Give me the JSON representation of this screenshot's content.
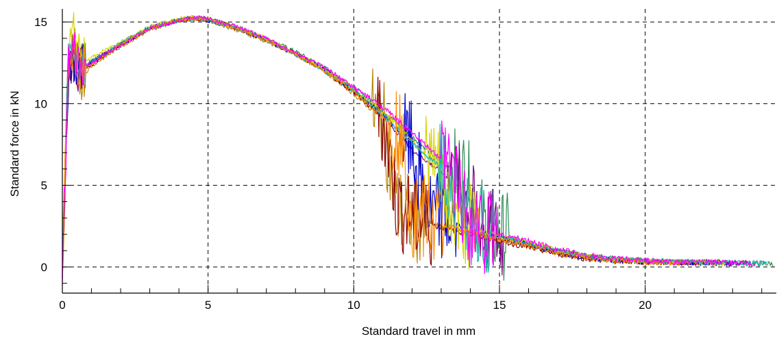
{
  "chart_data": {
    "type": "line",
    "xlabel": "Standard travel in mm",
    "ylabel": "Standard force in kN",
    "xlim": [
      0,
      24.5
    ],
    "ylim": [
      -1.6,
      15.8
    ],
    "xticks": [
      0,
      5,
      10,
      15,
      20
    ],
    "xtick_labels": [
      "0",
      "5",
      "10",
      "15",
      "20"
    ],
    "yticks": [
      0,
      5,
      10,
      15
    ],
    "ytick_labels": [
      "0",
      "5",
      "10",
      "15"
    ],
    "grid": true,
    "series": [
      {
        "color": "#2e8b57",
        "fracture_x": 13.8,
        "tail_end_x": 24.4,
        "x": [
          0,
          0.2,
          0.4,
          0.6,
          1,
          2,
          3,
          4,
          4.6,
          5,
          6,
          7,
          8,
          9,
          10,
          11,
          12,
          13,
          13.8,
          14.5,
          15,
          16,
          17,
          18,
          19,
          20,
          21,
          22,
          23,
          24.4
        ],
        "y": [
          0,
          12.5,
          13,
          12.2,
          12.5,
          13.7,
          14.7,
          15.2,
          15.3,
          15.2,
          14.7,
          14.0,
          13.2,
          12.2,
          11.0,
          9.6,
          8.0,
          6.4,
          5.7,
          2.4,
          2.0,
          1.5,
          1.0,
          0.7,
          0.5,
          0.4,
          0.3,
          0.3,
          0.25,
          0.2
        ]
      },
      {
        "color": "#800080",
        "fracture_x": 13.6,
        "tail_end_x": 23.5,
        "x": [
          0,
          0.2,
          0.4,
          0.6,
          1,
          2,
          3,
          4,
          4.6,
          5,
          6,
          7,
          8,
          9,
          10,
          11,
          12,
          13,
          13.6,
          14.5,
          15,
          16,
          17,
          18,
          19,
          20,
          21,
          22,
          23.5
        ],
        "y": [
          0,
          12.2,
          12.8,
          12.0,
          12.6,
          13.6,
          14.6,
          15.1,
          15.3,
          15.2,
          14.6,
          13.9,
          13.0,
          12.1,
          10.8,
          9.2,
          7.2,
          5.8,
          5.0,
          2.3,
          1.8,
          1.4,
          0.9,
          0.6,
          0.45,
          0.35,
          0.3,
          0.3,
          0.25
        ]
      },
      {
        "color": "#b8860b",
        "fracture_x": 11.0,
        "tail_end_x": 22.5,
        "x": [
          0,
          0.2,
          0.4,
          0.6,
          1,
          2,
          3,
          4,
          4.6,
          5,
          6,
          7,
          8,
          9,
          10,
          11,
          11.5,
          12,
          13,
          14,
          15,
          16,
          17,
          18,
          19,
          20,
          21,
          22.5
        ],
        "y": [
          0,
          12.0,
          13.5,
          11.5,
          12.3,
          13.5,
          14.5,
          15.1,
          15.2,
          15.1,
          14.5,
          13.8,
          13.0,
          12.0,
          10.6,
          9.0,
          3.5,
          3.0,
          2.5,
          2.1,
          1.8,
          1.3,
          0.9,
          0.6,
          0.4,
          0.3,
          0.3,
          0.25
        ]
      },
      {
        "color": "#8b0000",
        "fracture_x": 11.2,
        "tail_end_x": 22.0,
        "x": [
          0,
          0.2,
          0.4,
          0.6,
          1,
          2,
          3,
          4,
          4.6,
          5,
          6,
          7,
          8,
          9,
          10,
          11,
          11.5,
          12,
          13,
          14,
          15,
          16,
          17,
          18,
          19,
          20,
          22
        ],
        "y": [
          0,
          12.4,
          13.0,
          12.0,
          12.4,
          13.6,
          14.6,
          15.1,
          15.2,
          15.1,
          14.6,
          13.9,
          13.1,
          12.0,
          10.7,
          9.1,
          3.8,
          3.0,
          2.4,
          2.0,
          1.6,
          1.2,
          0.8,
          0.5,
          0.35,
          0.3,
          0.25
        ]
      },
      {
        "color": "#0000cd",
        "fracture_x": 12.0,
        "tail_end_x": 23.0,
        "x": [
          0,
          0.2,
          0.4,
          0.6,
          1,
          2,
          3,
          4,
          4.6,
          5,
          6,
          7,
          8,
          9,
          10,
          11,
          12,
          12.5,
          13,
          14,
          15,
          16,
          17,
          18,
          19,
          20,
          21,
          23
        ],
        "y": [
          0,
          11.8,
          12.9,
          12.1,
          12.5,
          13.6,
          14.6,
          15.1,
          15.2,
          15.1,
          14.6,
          13.9,
          13.0,
          12.1,
          10.8,
          9.4,
          7.4,
          3.5,
          3.0,
          2.2,
          1.8,
          1.4,
          0.9,
          0.6,
          0.4,
          0.3,
          0.3,
          0.2
        ]
      },
      {
        "color": "#d4d400",
        "fracture_x": 12.8,
        "tail_end_x": 22.8,
        "x": [
          0,
          0.2,
          0.4,
          0.6,
          1,
          2,
          3,
          4,
          4.6,
          5,
          6,
          7,
          8,
          9,
          10,
          11,
          12,
          12.8,
          13.2,
          14,
          15,
          16,
          17,
          18,
          19,
          20,
          21,
          22.8
        ],
        "y": [
          0,
          13.0,
          14.5,
          12.5,
          12.8,
          13.8,
          14.7,
          15.2,
          15.3,
          15.2,
          14.7,
          14.0,
          13.1,
          12.1,
          10.9,
          9.5,
          7.8,
          6.2,
          3.8,
          2.4,
          1.9,
          1.5,
          1.0,
          0.7,
          0.45,
          0.35,
          0.3,
          0.25
        ]
      },
      {
        "color": "#20b2aa",
        "fracture_x": 13.3,
        "tail_end_x": 24.2,
        "x": [
          0,
          0.2,
          0.4,
          0.6,
          1,
          2,
          3,
          4,
          4.6,
          5,
          6,
          7,
          8,
          9,
          10,
          11,
          12,
          13,
          13.3,
          14,
          15,
          16,
          17,
          18,
          19,
          20,
          21,
          22,
          23,
          24.2
        ],
        "y": [
          0,
          12.6,
          13.1,
          12.3,
          12.6,
          13.7,
          14.6,
          15.1,
          15.2,
          15.1,
          14.6,
          13.9,
          13.0,
          12.0,
          10.8,
          9.3,
          7.6,
          6.1,
          5.4,
          2.5,
          1.9,
          1.4,
          1.0,
          0.65,
          0.5,
          0.4,
          0.3,
          0.3,
          0.25,
          0.2
        ]
      },
      {
        "color": "#ff8c00",
        "fracture_x": 11.6,
        "tail_end_x": 21.5,
        "x": [
          0,
          0.2,
          0.4,
          0.6,
          1,
          2,
          3,
          4,
          4.6,
          5,
          6,
          7,
          8,
          9,
          10,
          11,
          11.6,
          12,
          13,
          14,
          15,
          16,
          17,
          18,
          19,
          20,
          21.5
        ],
        "y": [
          0,
          12.2,
          13.4,
          12.2,
          12.4,
          13.6,
          14.6,
          15.1,
          15.2,
          15.1,
          14.6,
          13.9,
          13.0,
          12.0,
          10.7,
          9.2,
          8.2,
          3.2,
          2.6,
          2.1,
          1.7,
          1.3,
          0.85,
          0.55,
          0.4,
          0.3,
          0.25
        ]
      },
      {
        "color": "#ff00ff",
        "fracture_x": 13.4,
        "tail_end_x": 23.8,
        "x": [
          0,
          0.2,
          0.4,
          0.6,
          1,
          2,
          3,
          4,
          4.6,
          5,
          6,
          7,
          8,
          9,
          10,
          11,
          12,
          13,
          13.4,
          14,
          15,
          16,
          17,
          18,
          19,
          20,
          21,
          22,
          23.8
        ],
        "y": [
          0,
          12.0,
          13.0,
          12.0,
          12.5,
          13.6,
          14.6,
          15.1,
          15.3,
          15.2,
          14.7,
          14.0,
          13.1,
          12.2,
          11.0,
          9.8,
          8.2,
          6.6,
          6.0,
          2.6,
          2.0,
          1.6,
          1.1,
          0.7,
          0.5,
          0.4,
          0.3,
          0.3,
          0.2
        ]
      }
    ]
  }
}
